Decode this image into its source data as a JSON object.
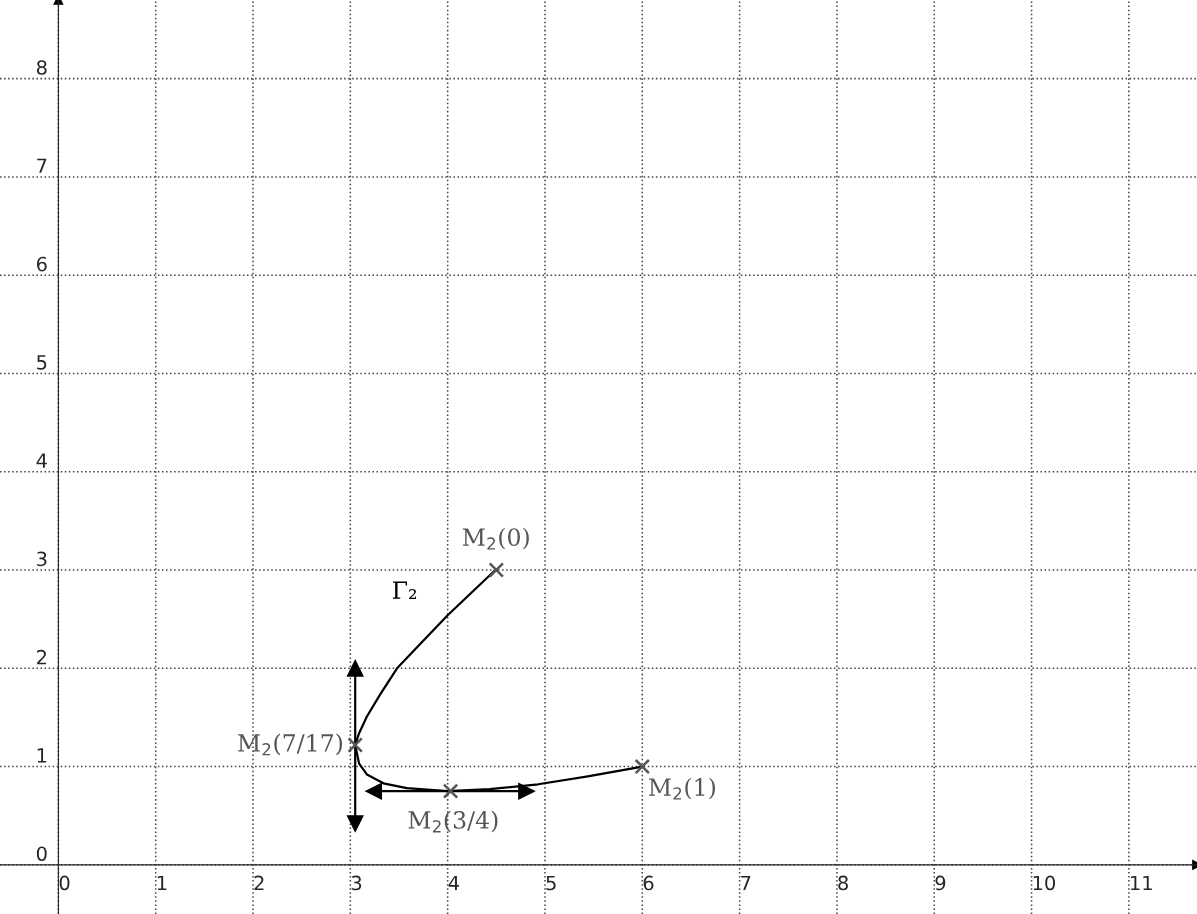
{
  "chart_data": {
    "type": "line",
    "xlim": [
      -0.6,
      11.7
    ],
    "ylim": [
      -0.5,
      8.8
    ],
    "xticks": [
      0,
      1,
      2,
      3,
      4,
      5,
      6,
      7,
      8,
      9,
      10,
      11
    ],
    "yticks": [
      0,
      1,
      2,
      3,
      4,
      5,
      6,
      7,
      8
    ],
    "grid": true,
    "line_style": "solid",
    "series": [
      {
        "color": "#000000",
        "marker": "none",
        "x": [
          4.49,
          4.0,
          3.71,
          3.48,
          3.31,
          3.17,
          3.09,
          3.05,
          3.09,
          3.17,
          3.34,
          3.58,
          4.0,
          4.43,
          4.93,
          5.44,
          6.0
        ],
        "values": [
          3.0,
          2.54,
          2.24,
          2.0,
          1.74,
          1.51,
          1.34,
          1.22,
          1.03,
          0.92,
          0.83,
          0.78,
          0.75,
          0.77,
          0.82,
          0.9,
          1.0
        ]
      },
      {
        "color": "#000000",
        "marker": "triangle",
        "x": [
          3.05,
          3.05
        ],
        "values": [
          0.42,
          2.0
        ]
      },
      {
        "color": "#000000",
        "marker": "triangle",
        "x": [
          3.24,
          4.81
        ],
        "values": [
          0.75,
          0.75
        ]
      },
      {
        "type": "scatter",
        "color": "#555555",
        "marker": "cross",
        "x": [
          4.5,
          3.05,
          4.03,
          6.0
        ],
        "values": [
          3.0,
          1.22,
          0.75,
          1.0
        ]
      }
    ],
    "annotations": [
      {
        "text": "M$_{2}$(0)",
        "x": 4.5,
        "y": 3.0
      },
      "Γ₂",
      {
        "text": "M$_{2}$(7/17)",
        "x": 3.05,
        "y": 1.22
      },
      {
        "text": "M$_{2}$(3/4)",
        "x": 4.03,
        "y": 0.75
      },
      {
        "text": "M$_{2}$(1)",
        "x": 6.0,
        "y": 1.0
      }
    ]
  }
}
